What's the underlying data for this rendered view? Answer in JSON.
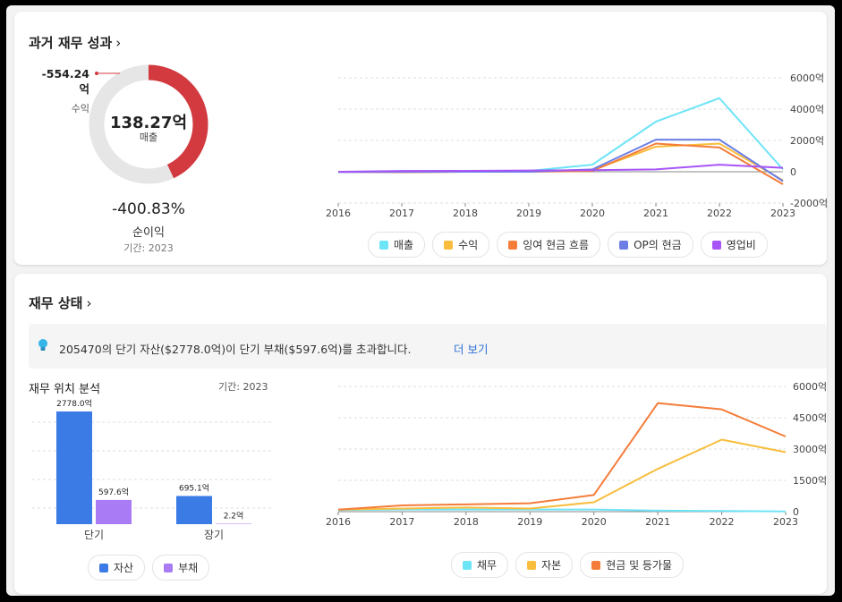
{
  "section1": {
    "title": "과거 재무 성과",
    "donut": {
      "profit_value": "-554.24",
      "profit_unit": "억",
      "profit_label": "수익",
      "center_value": "138.27억",
      "center_label": "매출",
      "profit_fraction_of_ring": 0.43
    },
    "net_margin_value": "-400.83%",
    "net_margin_label": "순이익",
    "period": "기간: 2023"
  },
  "section2": {
    "title": "재무 상태",
    "info_text": "205470의 단기 자산($2778.0억)이 단기 부채($597.6억)를 초과합니다.",
    "more_link": "더 보기",
    "position_title": "재무 위치 분석",
    "period": "기간: 2023"
  },
  "colors": {
    "red": "#d23a3f",
    "grey": "#e6e6e6",
    "cyan": "#6ee4f7",
    "yellow": "#f8bd3c",
    "orange": "#f47d3a",
    "blue": "#6c7ee6",
    "purple": "#a855f7",
    "asset_blue": "#3b7be6",
    "liab_purple": "#a97cf5",
    "link": "#2b6fd6"
  },
  "chart_data": [
    {
      "type": "line",
      "x": [
        "2016",
        "2017",
        "2018",
        "2019",
        "2020",
        "2021",
        "2022",
        "2023"
      ],
      "yticks": [
        "6000억",
        "4000억",
        "2000억",
        "0",
        "-2000억"
      ],
      "ylim": [
        -2000,
        6000
      ],
      "y_axis_side": "right",
      "series": [
        {
          "name": "매출",
          "color": "#6ee4f7",
          "values": [
            0,
            0,
            20,
            50,
            450,
            3200,
            4700,
            150
          ]
        },
        {
          "name": "수익",
          "color": "#f8bd3c",
          "values": [
            0,
            -20,
            10,
            0,
            100,
            1600,
            1800,
            -550
          ]
        },
        {
          "name": "잉여 현금 흐름",
          "color": "#f47d3a",
          "values": [
            0,
            -30,
            0,
            0,
            50,
            1800,
            1550,
            -800
          ]
        },
        {
          "name": "OP의 현금",
          "color": "#6c7ee6",
          "values": [
            -20,
            -10,
            0,
            0,
            150,
            2050,
            2050,
            -600
          ]
        },
        {
          "name": "영업비",
          "color": "#a855f7",
          "values": [
            0,
            50,
            60,
            80,
            100,
            150,
            450,
            250
          ]
        }
      ]
    },
    {
      "type": "bar",
      "categories": [
        "단기",
        "장기"
      ],
      "series": [
        {
          "name": "자산",
          "color": "#3b7be6",
          "values": [
            2778.0,
            695.1
          ],
          "labels": [
            "2778.0억",
            "695.1억"
          ]
        },
        {
          "name": "부채",
          "color": "#a97cf5",
          "values": [
            597.6,
            2.2
          ],
          "labels": [
            "597.6억",
            "2.2억"
          ]
        }
      ],
      "ylim": [
        0,
        2778.0
      ]
    },
    {
      "type": "line",
      "x": [
        "2016",
        "2017",
        "2018",
        "2019",
        "2020",
        "2021",
        "2022",
        "2023"
      ],
      "yticks": [
        "6000억",
        "4500억",
        "3000억",
        "1500억",
        "0"
      ],
      "ylim": [
        0,
        6000
      ],
      "y_axis_side": "right",
      "series": [
        {
          "name": "채무",
          "color": "#6ee4f7",
          "values": [
            80,
            100,
            100,
            100,
            100,
            50,
            30,
            10
          ]
        },
        {
          "name": "자본",
          "color": "#f8bd3c",
          "values": [
            100,
            150,
            200,
            150,
            450,
            2050,
            3450,
            2850
          ]
        },
        {
          "name": "현금 및 등가물",
          "color": "#f47d3a",
          "values": [
            100,
            300,
            350,
            400,
            800,
            5200,
            4900,
            3600
          ]
        }
      ]
    }
  ]
}
